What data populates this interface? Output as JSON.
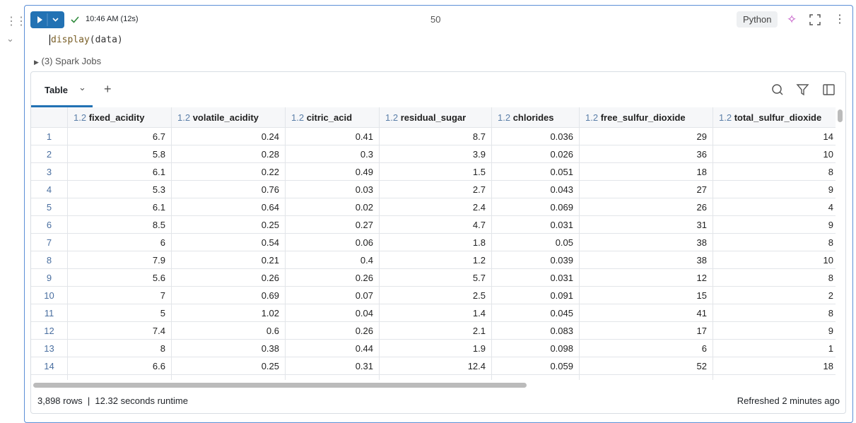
{
  "cell": {
    "status": "10:46 AM (12s)",
    "number": "50",
    "language": "Python",
    "code": [
      "display",
      "(data)"
    ],
    "jobs": "(3) Spark Jobs"
  },
  "tabs": {
    "active": "Table"
  },
  "table": {
    "columns": [
      {
        "type": "1.2",
        "name": "fixed_acidity"
      },
      {
        "type": "1.2",
        "name": "volatile_acidity"
      },
      {
        "type": "1.2",
        "name": "citric_acid"
      },
      {
        "type": "1.2",
        "name": "residual_sugar"
      },
      {
        "type": "1.2",
        "name": "chlorides"
      },
      {
        "type": "1.2",
        "name": "free_sulfur_dioxide"
      },
      {
        "type": "1.2",
        "name": "total_sulfur_dioxide"
      }
    ],
    "rows": [
      [
        "1",
        "6.7",
        "0.24",
        "0.41",
        "8.7",
        "0.036",
        "29",
        "14"
      ],
      [
        "2",
        "5.8",
        "0.28",
        "0.3",
        "3.9",
        "0.026",
        "36",
        "10"
      ],
      [
        "3",
        "6.1",
        "0.22",
        "0.49",
        "1.5",
        "0.051",
        "18",
        "8"
      ],
      [
        "4",
        "5.3",
        "0.76",
        "0.03",
        "2.7",
        "0.043",
        "27",
        "9"
      ],
      [
        "5",
        "6.1",
        "0.64",
        "0.02",
        "2.4",
        "0.069",
        "26",
        "4"
      ],
      [
        "6",
        "8.5",
        "0.25",
        "0.27",
        "4.7",
        "0.031",
        "31",
        "9"
      ],
      [
        "7",
        "6",
        "0.54",
        "0.06",
        "1.8",
        "0.05",
        "38",
        "8"
      ],
      [
        "8",
        "7.9",
        "0.21",
        "0.4",
        "1.2",
        "0.039",
        "38",
        "10"
      ],
      [
        "9",
        "5.6",
        "0.26",
        "0.26",
        "5.7",
        "0.031",
        "12",
        "8"
      ],
      [
        "10",
        "7",
        "0.69",
        "0.07",
        "2.5",
        "0.091",
        "15",
        "2"
      ],
      [
        "11",
        "5",
        "1.02",
        "0.04",
        "1.4",
        "0.045",
        "41",
        "8"
      ],
      [
        "12",
        "7.4",
        "0.6",
        "0.26",
        "2.1",
        "0.083",
        "17",
        "9"
      ],
      [
        "13",
        "8",
        "0.38",
        "0.44",
        "1.9",
        "0.098",
        "6",
        "1"
      ],
      [
        "14",
        "6.6",
        "0.25",
        "0.31",
        "12.4",
        "0.059",
        "52",
        "18"
      ]
    ]
  },
  "footer": {
    "rows": "3,898 rows",
    "runtime": "12.32 seconds runtime",
    "refreshed": "Refreshed 2 minutes ago"
  }
}
